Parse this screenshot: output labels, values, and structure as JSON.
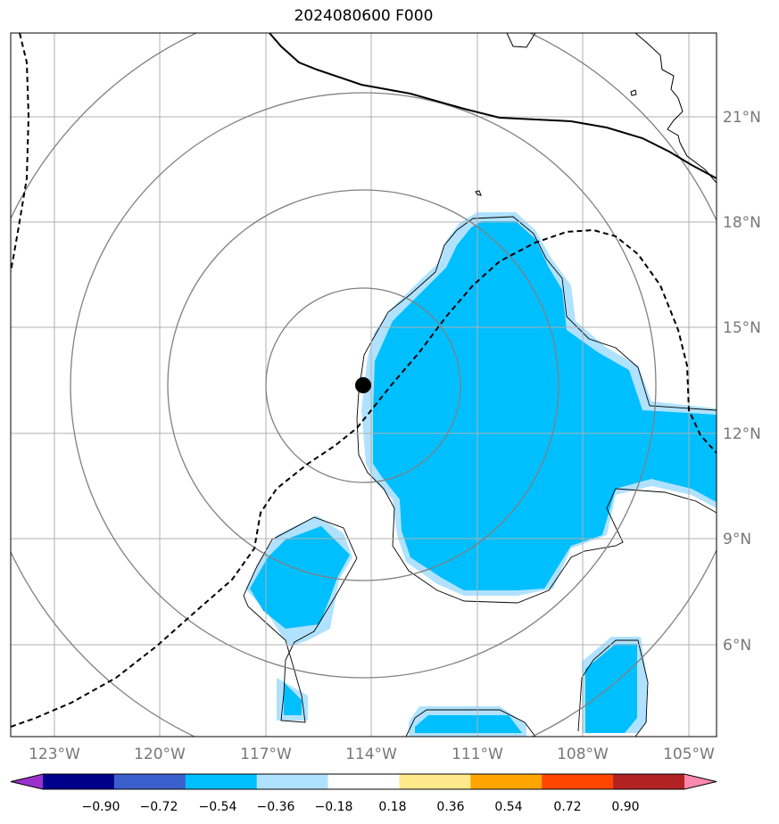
{
  "title": "2024080600 F000",
  "lon_ticks": [
    "123°W",
    "120°W",
    "117°W",
    "114°W",
    "111°W",
    "108°W",
    "105°W"
  ],
  "lat_ticks": [
    "21°N",
    "18°N",
    "15°N",
    "12°N",
    "9°N",
    "6°N"
  ],
  "center_marker": {
    "lon": -114.3,
    "lat": 13.3
  },
  "range_rings": 4,
  "colorbar": {
    "levels": [
      "−0.90",
      "−0.72",
      "−0.54",
      "−0.36",
      "−0.18",
      "0.18",
      "0.36",
      "0.54",
      "0.72",
      "0.90"
    ],
    "colors": [
      "#9932cc",
      "#00008b",
      "#3a5fcd",
      "#00bfff",
      "#b0e2ff",
      "#ffffff",
      "#ffe98a",
      "#ffa500",
      "#ff4500",
      "#b22222",
      "#ff88b0"
    ]
  },
  "colors": {
    "fill_dark": "#00bfff",
    "fill_light": "#b0e2ff",
    "grid": "#b0b0b0",
    "ring": "#808080"
  }
}
